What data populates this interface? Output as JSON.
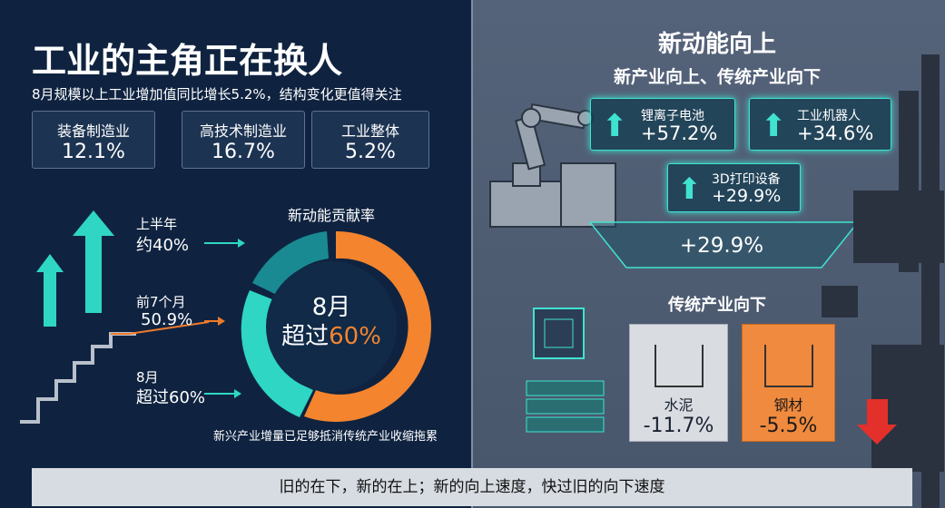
{
  "header": {
    "title": "工业的主角正在换人",
    "subtitle": "8月规模以上工业增加值同比增长5.2%，结构变化更值得关注"
  },
  "stats": [
    {
      "label": "装备制造业",
      "value": "12.1%"
    },
    {
      "label": "高技术制造业",
      "value": "16.7%"
    },
    {
      "label": "工业整体",
      "value": "5.2%"
    }
  ],
  "steps": [
    {
      "period": "上半年",
      "value": "约40%"
    },
    {
      "period": "前7个月",
      "value": "50.9%"
    },
    {
      "period": "8月",
      "value": "超过60%"
    }
  ],
  "donut": {
    "title": "新动能贡献率",
    "center_line1": "8月",
    "center_prefix": "超过",
    "center_value": "60%"
  },
  "footnote": "新兴产业增量已足够抵消传统产业收缩拖累",
  "right": {
    "title": "新动能向上",
    "subtitle": "新产业向上、传统产业向下",
    "up_items": [
      {
        "label": "锂离子电池",
        "value": "+57.2%"
      },
      {
        "label": "工业机器人",
        "value": "+34.6%"
      },
      {
        "label": "3D打印设备",
        "value": "+29.9%"
      }
    ],
    "band_value": "+29.9%",
    "down_title": "传统产业向下",
    "down_items": [
      {
        "label": "水泥",
        "value": "-11.7%"
      },
      {
        "label": "钢材",
        "value": "-5.5%"
      }
    ]
  },
  "banner": "旧的在下，新的在上；新的向上速度，快过旧的向下速度"
}
